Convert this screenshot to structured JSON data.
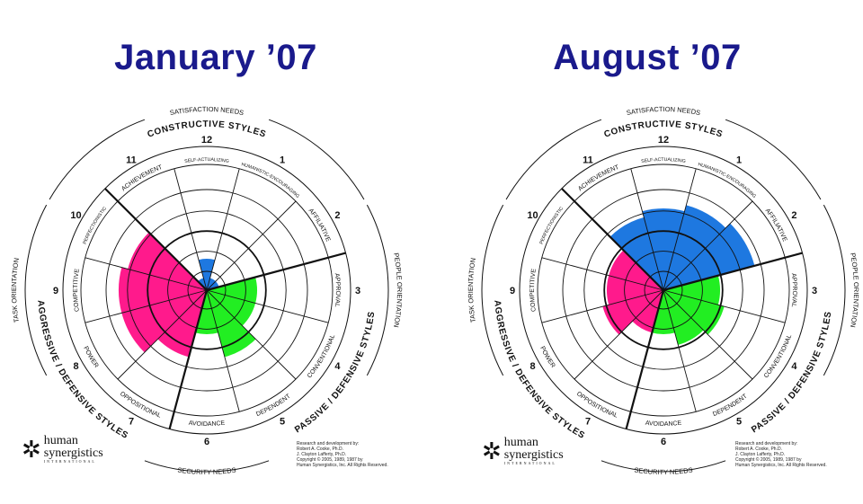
{
  "charts": [
    {
      "title": "January ’07",
      "ring_labels": {
        "top": "CONSTRUCTIVE STYLES",
        "right": "PASSIVE / DEFENSIVE STYLES",
        "left": "AGGRESSIVE / DEFENSIVE STYLES",
        "satisfaction": "SATISFACTION NEEDS",
        "security": "SECURITY NEEDS",
        "people": "PEOPLE ORIENTATION",
        "task": "TASK ORIENTATION"
      }
    },
    {
      "title": "August ’07",
      "ring_labels": {
        "top": "CONSTRUCTIVE STYLES",
        "right": "PASSIVE / DEFENSIVE STYLES",
        "left": "AGGRESSIVE / DEFENSIVE STYLES",
        "satisfaction": "SATISFACTION NEEDS",
        "security": "SECURITY NEEDS",
        "people": "PEOPLE ORIENTATION",
        "task": "TASK ORIENTATION"
      }
    }
  ],
  "logo": {
    "line1": "human",
    "line2": "synergistics",
    "line3": "INTERNATIONAL"
  },
  "credits": [
    {
      "lines": [
        "Research and development by:",
        "Robert A. Cooke, Ph.D.",
        "J. Clayton Lafferty, Ph.D.",
        "Copyright © 2005, 1989, 1987 by",
        "Human Synergistics, Inc. All Rights Reserved."
      ]
    },
    {
      "lines": [
        "Research and development by:",
        "Robert A. Cooke, Ph.D.",
        "J. Clayton Lafferty, Ph.D.",
        "Copyright © 2005, 1989, 1987 by",
        "Human Synergistics, Inc. All Rights Reserved."
      ]
    }
  ],
  "chart_data": [
    {
      "type": "circumplex",
      "title": "January ’07",
      "categories": [
        {
          "num": "1",
          "label": "HUMANISTIC-ENCOURAGING",
          "group": "constructive"
        },
        {
          "num": "2",
          "label": "AFFILIATIVE",
          "group": "constructive"
        },
        {
          "num": "3",
          "label": "APPROVAL",
          "group": "passive"
        },
        {
          "num": "4",
          "label": "CONVENTIONAL",
          "group": "passive"
        },
        {
          "num": "5",
          "label": "DEPENDENT",
          "group": "passive"
        },
        {
          "num": "6",
          "label": "AVOIDANCE",
          "group": "passive"
        },
        {
          "num": "7",
          "label": "OPPOSITIONAL",
          "group": "aggressive"
        },
        {
          "num": "8",
          "label": "POWER",
          "group": "aggressive"
        },
        {
          "num": "9",
          "label": "COMPETITIVE",
          "group": "aggressive"
        },
        {
          "num": "10",
          "label": "PERFECTIONISTIC",
          "group": "aggressive"
        },
        {
          "num": "11",
          "label": "ACHIEVEMENT",
          "group": "constructive"
        },
        {
          "num": "12",
          "label": "SELF-ACTUALIZING",
          "group": "constructive"
        }
      ],
      "values": [
        10,
        10,
        40,
        40,
        55,
        35,
        55,
        70,
        70,
        65,
        10,
        25
      ],
      "value_unit": "percentile",
      "colors": {
        "constructive": "#1e78e0",
        "passive": "#22ee22",
        "aggressive": "#ff1a8c"
      }
    },
    {
      "type": "circumplex",
      "title": "August ’07",
      "categories": [
        {
          "num": "1",
          "label": "HUMANISTIC-ENCOURAGING",
          "group": "constructive"
        },
        {
          "num": "2",
          "label": "AFFILIATIVE",
          "group": "constructive"
        },
        {
          "num": "3",
          "label": "APPROVAL",
          "group": "passive"
        },
        {
          "num": "4",
          "label": "CONVENTIONAL",
          "group": "passive"
        },
        {
          "num": "5",
          "label": "DEPENDENT",
          "group": "passive"
        },
        {
          "num": "6",
          "label": "AVOIDANCE",
          "group": "passive"
        },
        {
          "num": "7",
          "label": "OPPOSITIONAL",
          "group": "aggressive"
        },
        {
          "num": "8",
          "label": "POWER",
          "group": "aggressive"
        },
        {
          "num": "9",
          "label": "COMPETITIVE",
          "group": "aggressive"
        },
        {
          "num": "10",
          "label": "PERFECTIONISTIC",
          "group": "aggressive"
        },
        {
          "num": "11",
          "label": "ACHIEVEMENT",
          "group": "constructive"
        },
        {
          "num": "12",
          "label": "SELF-ACTUALIZING",
          "group": "constructive"
        }
      ],
      "values": [
        70,
        75,
        45,
        50,
        45,
        35,
        35,
        50,
        45,
        45,
        60,
        65
      ],
      "value_unit": "percentile",
      "colors": {
        "constructive": "#1e78e0",
        "passive": "#22ee22",
        "aggressive": "#ff1a8c"
      }
    }
  ]
}
